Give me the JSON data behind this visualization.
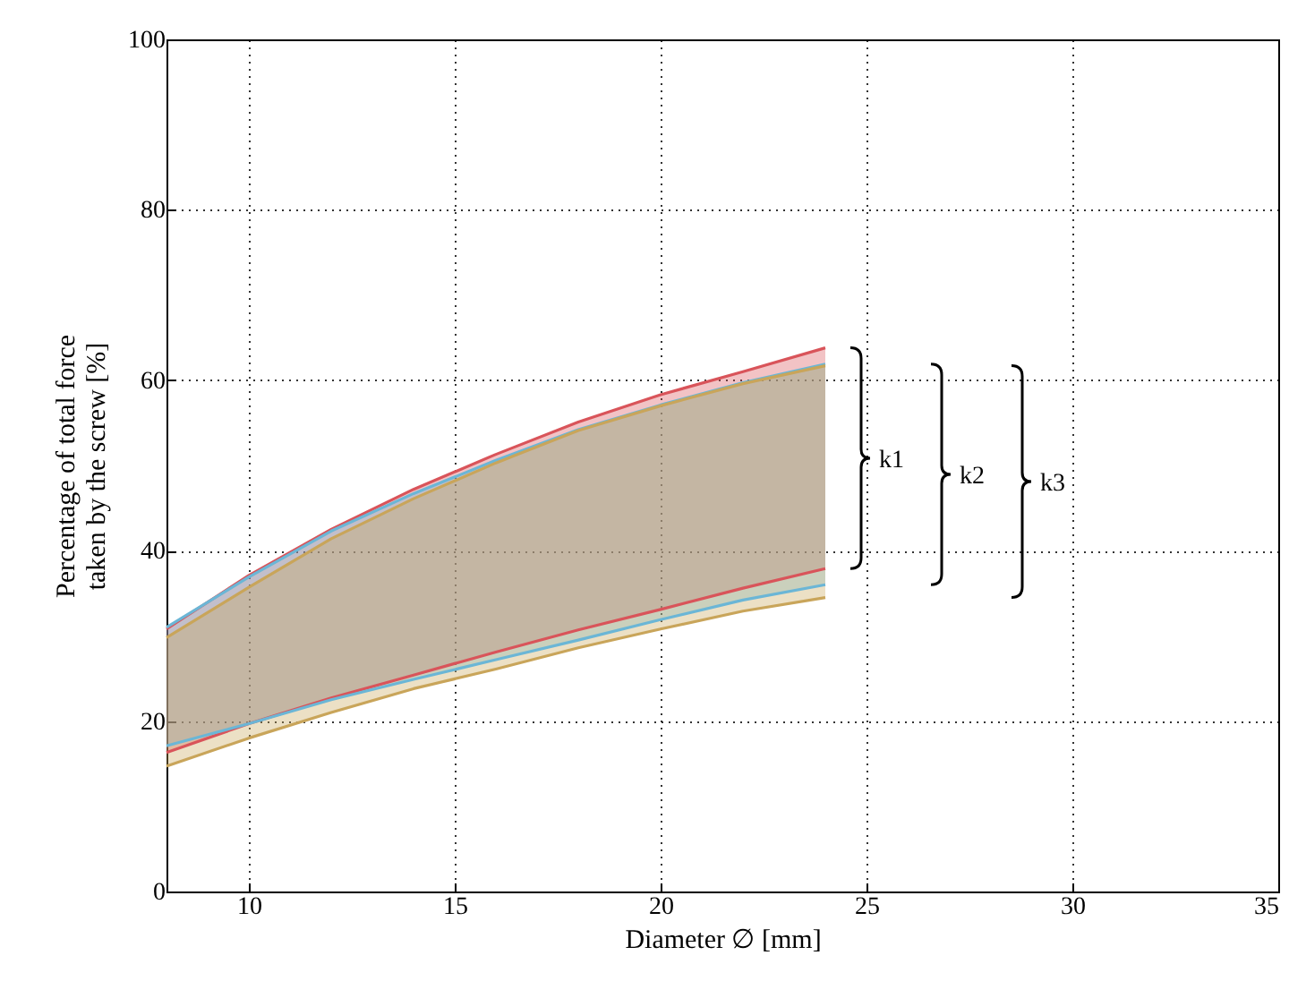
{
  "chart_data": {
    "type": "line",
    "xlabel": "Diameter ∅ [mm]",
    "ylabel": "Percentage of total force\ntaken by the screw [%]",
    "xlim": [
      8,
      35
    ],
    "xticks": [
      10,
      15,
      20,
      25,
      30,
      35
    ],
    "ylim": [
      0,
      100
    ],
    "yticks": [
      0,
      20,
      40,
      60,
      80,
      100
    ],
    "grid": true,
    "series": [
      {
        "name": "k1",
        "color": "#d9545a",
        "x": [
          8,
          10,
          12,
          14,
          16,
          18,
          20,
          22,
          24
        ],
        "values": [
          30.8,
          37.1,
          42.5,
          47.2,
          51.3,
          55.1,
          58.3,
          61.0,
          63.8
        ],
        "upper": [
          30.8,
          37.1,
          42.5,
          47.2,
          51.3,
          55.1,
          58.3,
          61.0,
          63.8
        ],
        "lower": [
          16.3,
          19.7,
          22.7,
          25.4,
          28.1,
          30.7,
          33.1,
          35.6,
          37.9
        ]
      },
      {
        "color": "#d9545a",
        "x": [
          8,
          10,
          12,
          14,
          16,
          18,
          20,
          22,
          24
        ],
        "values": [
          16.3,
          19.7,
          22.7,
          25.4,
          28.1,
          30.7,
          33.1,
          35.6,
          37.9
        ]
      },
      {
        "name": "k2",
        "color": "#6bb6d6",
        "x": [
          8,
          10,
          12,
          14,
          16,
          18,
          20,
          22,
          24
        ],
        "values": [
          31.0,
          36.9,
          42.3,
          46.7,
          50.6,
          54.2,
          57.1,
          59.7,
          61.9
        ],
        "upper": [
          31.0,
          36.9,
          42.3,
          46.7,
          50.6,
          54.2,
          57.1,
          59.7,
          61.9
        ],
        "lower": [
          17.1,
          19.7,
          22.5,
          24.9,
          27.2,
          29.5,
          31.9,
          34.2,
          36.0
        ]
      },
      {
        "color": "#6bb6d6",
        "x": [
          8,
          10,
          12,
          14,
          16,
          18,
          20,
          22,
          24
        ],
        "values": [
          17.1,
          19.7,
          22.5,
          24.9,
          27.2,
          29.5,
          31.9,
          34.2,
          36.0
        ]
      },
      {
        "name": "k3",
        "color": "#c9a55a",
        "x": [
          8,
          10,
          12,
          14,
          16,
          18,
          20,
          22,
          24
        ],
        "values": [
          29.8,
          35.7,
          41.4,
          46.1,
          50.3,
          54.1,
          57.0,
          59.6,
          61.7
        ],
        "upper": [
          29.8,
          35.7,
          41.4,
          46.1,
          50.3,
          54.1,
          57.0,
          59.6,
          61.7
        ],
        "lower": [
          14.7,
          18.0,
          21.0,
          23.8,
          26.1,
          28.6,
          30.8,
          32.9,
          34.5
        ]
      },
      {
        "color": "#c9a55a",
        "x": [
          8,
          10,
          12,
          14,
          16,
          18,
          20,
          22,
          24
        ],
        "values": [
          14.7,
          18.0,
          21.0,
          23.8,
          26.1,
          28.6,
          30.8,
          32.9,
          34.5
        ]
      }
    ]
  }
}
